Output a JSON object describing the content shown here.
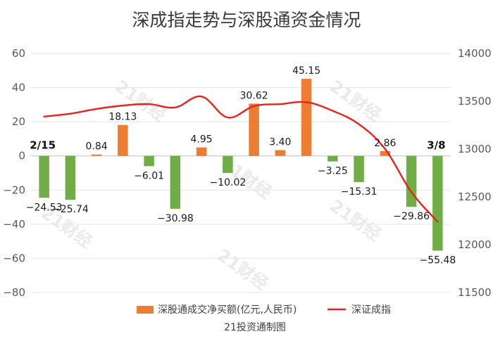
{
  "chart_data": {
    "type": "bar",
    "title": "深成指走势与深股通资金情况",
    "categories": [
      "2/15",
      "",
      "",
      "",
      "",
      "",
      "",
      "",
      "",
      "",
      "",
      "",
      "",
      "",
      "",
      "3/8"
    ],
    "series": [
      {
        "name": "深股通成交净买额(亿元,人民币)",
        "type": "bar",
        "axis": "left",
        "color": "#ed7d31",
        "negative_color": "#70ad47",
        "values": [
          -24.53,
          -25.74,
          0.84,
          18.13,
          -6.01,
          -30.98,
          4.95,
          -10.02,
          30.62,
          3.4,
          45.15,
          -3.25,
          -15.31,
          2.86,
          -29.86,
          -55.48
        ],
        "value_labels": [
          "−24.53",
          "−25.74",
          "0.84",
          "18.13",
          "−6.01",
          "−30.98",
          "4.95",
          "−10.02",
          "30.62",
          "3.40",
          "45.15",
          "−3.25",
          "−15.31",
          "2.86",
          "−29.86",
          "−55.48"
        ]
      },
      {
        "name": "深证成指",
        "type": "line",
        "axis": "right",
        "color": "#e8221c",
        "values": [
          13340,
          13370,
          13420,
          13455,
          13470,
          13435,
          13550,
          13330,
          13450,
          13470,
          13490,
          13400,
          13260,
          13000,
          12550,
          12240
        ]
      }
    ],
    "y_left": {
      "range": [
        -80,
        60
      ],
      "ticks": [
        60,
        40,
        20,
        0,
        -20,
        -40,
        -60,
        -80
      ],
      "tick_labels": [
        "60",
        "40",
        "20",
        "0",
        "−20",
        "−40",
        "−60",
        "−80"
      ]
    },
    "y_right": {
      "range": [
        11500,
        14000
      ],
      "ticks": [
        14000,
        13500,
        13000,
        12500,
        12000,
        11500
      ],
      "tick_labels": [
        "14000",
        "13500",
        "13000",
        "12500",
        "12000",
        "11500"
      ]
    },
    "grid": true,
    "legend_position": "bottom",
    "credit": "21投资通制图",
    "watermark": "21财经"
  }
}
